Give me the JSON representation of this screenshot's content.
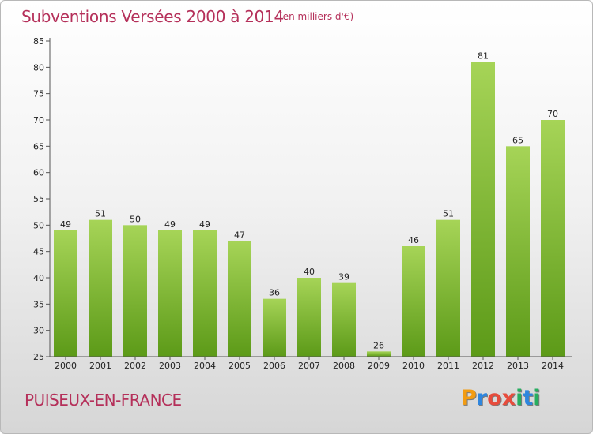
{
  "header": {
    "title": "Subventions Versées 2000 à 2014",
    "subtitle": "(en milliers d'€)"
  },
  "footer": {
    "commune": "PUISEUX-EN-FRANCE",
    "logo": {
      "letters": [
        "P",
        "r",
        "o",
        "x",
        "i",
        "t",
        "i"
      ],
      "colors": [
        "#f39c12",
        "#2e86de",
        "#e74c3c",
        "#e74c3c",
        "#27ae60",
        "#2e86de",
        "#27ae60"
      ]
    }
  },
  "colors": {
    "bar_light": "#a6d457",
    "bar_dark": "#5c9a18",
    "axis": "#555555",
    "title": "#b5305a"
  },
  "chart_data": {
    "type": "bar",
    "title": "Subventions Versées 2000 à 2014",
    "subtitle": "(en milliers d'€)",
    "categories": [
      "2000",
      "2001",
      "2002",
      "2003",
      "2004",
      "2005",
      "2006",
      "2007",
      "2008",
      "2009",
      "2010",
      "2011",
      "2012",
      "2013",
      "2014"
    ],
    "values": [
      49,
      51,
      50,
      49,
      49,
      47,
      36,
      40,
      39,
      26,
      46,
      51,
      81,
      65,
      70
    ],
    "ylim": [
      25,
      85
    ],
    "yticks": [
      25,
      30,
      35,
      40,
      45,
      50,
      55,
      60,
      65,
      70,
      75,
      80,
      85
    ],
    "grid": false,
    "legend": "none"
  }
}
